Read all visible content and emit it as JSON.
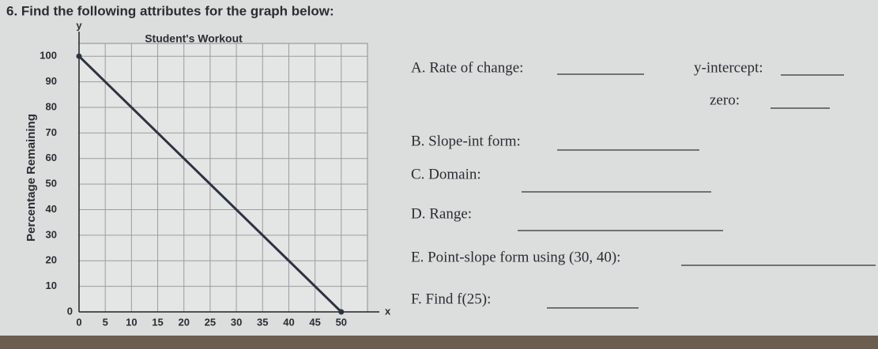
{
  "header": {
    "title": "6. Find the following attributes for the graph below:"
  },
  "chart_data": {
    "type": "line",
    "title": "Student's Workout",
    "ylabel": "Percentage Remaining",
    "x_axis_letter": "x",
    "y_axis_letter": "y",
    "x": [
      0,
      50
    ],
    "series": [
      {
        "color": "#2b3440",
        "values": [
          100,
          0
        ]
      }
    ],
    "xlim": [
      0,
      55
    ],
    "ylim": [
      0,
      105
    ],
    "xticks": [
      0,
      5,
      10,
      15,
      20,
      25,
      30,
      35,
      40,
      45,
      50
    ],
    "yticks": [
      0,
      10,
      20,
      30,
      40,
      50,
      60,
      70,
      80,
      90,
      100
    ],
    "grid": true
  },
  "questions": {
    "a": "A. Rate of change:",
    "y_intercept": "y-intercept:",
    "zero": "zero:",
    "b": "B. Slope-int form:",
    "c": "C. Domain:",
    "d": "D. Range:",
    "e": "E. Point-slope form using (30, 40):",
    "f": "F. Find f(25):"
  }
}
